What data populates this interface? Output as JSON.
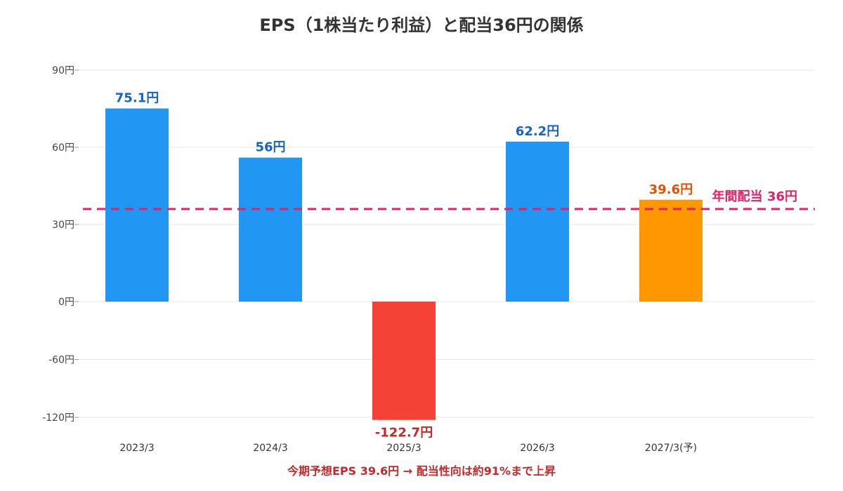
{
  "chart_data": {
    "type": "bar",
    "title": "EPS（1株当たり利益）と配当36円の関係",
    "categories": [
      "2023/3",
      "2024/3",
      "2025/3",
      "2026/3",
      "2027/3(予)"
    ],
    "values": [
      75.1,
      56,
      -122.7,
      62.2,
      39.6
    ],
    "data_labels": [
      "75.1円",
      "56円",
      "-122.7円",
      "62.2円",
      "39.6円"
    ],
    "bar_kinds": [
      "positive",
      "positive",
      "negative",
      "positive",
      "forecast"
    ],
    "y_ticks": [
      {
        "value": 90,
        "label": "90円"
      },
      {
        "value": 60,
        "label": "60円"
      },
      {
        "value": 30,
        "label": "30円"
      },
      {
        "value": 0,
        "label": "0円"
      },
      {
        "value": -60,
        "label": "-60円"
      },
      {
        "value": -120,
        "label": "-120円"
      }
    ],
    "reference_line": {
      "value": 36,
      "label": "年間配当 36円",
      "style": "dashed"
    },
    "grid": true,
    "annotation": "今期予想EPS 39.6円 → 配当性向は約91%まで上昇",
    "colors": {
      "positive": "#2196F3",
      "negative": "#F44336",
      "forecast": "#FF9800",
      "label_positive": "#1565C0",
      "label_negative": "#C62828",
      "label_forecast": "#E65100",
      "reference": "#E91E63",
      "annotation": "#C62828",
      "grid": "#e6e6e6"
    }
  }
}
